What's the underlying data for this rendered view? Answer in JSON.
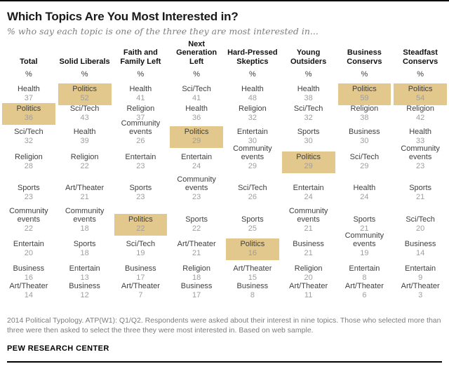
{
  "page": {
    "title": "Which Topics Are You Most Interested in?",
    "subtitle": "% who say each topic is one of the three they are most interested in...",
    "note": "2014 Political Typology. ATP(W1): Q1/Q2. Respondents were asked about their interest in nine topics. Those who selected more than three were then asked to select the three they were most interested in. Based on web sample.",
    "brand": "PEW RESEARCH CENTER"
  },
  "colors": {
    "highlight": "#E2C88D",
    "topic_text": "#3F3F3F",
    "value_text": "#9E9E9E",
    "rule": "#000000"
  },
  "unit_symbol": "%",
  "chart_data": {
    "type": "table",
    "title": "Which Topics Are You Most Interested in?",
    "unit": "% who say each topic is one of the three they are most interested in",
    "highlight_meaning": "Politics cell is highlighted (tan) in every column",
    "columns": [
      {
        "label": "Total",
        "rows": [
          {
            "topic": "Health",
            "value": 37
          },
          {
            "topic": "Politics",
            "value": 36,
            "highlight": true
          },
          {
            "topic": "Sci/Tech",
            "value": 32
          },
          {
            "topic": "Religion",
            "value": 28
          },
          {
            "topic": "Sports",
            "value": 23
          },
          {
            "topic": "Community events",
            "value": 22
          },
          {
            "topic": "Entertain",
            "value": 20
          },
          {
            "topic": "Business",
            "value": 16
          },
          {
            "topic": "Art/Theater",
            "value": 14
          }
        ]
      },
      {
        "label": "Solid Liberals",
        "rows": [
          {
            "topic": "Politics",
            "value": 52,
            "highlight": true
          },
          {
            "topic": "Sci/Tech",
            "value": 43
          },
          {
            "topic": "Health",
            "value": 39
          },
          {
            "topic": "Religion",
            "value": 22
          },
          {
            "topic": "Art/Theater",
            "value": 21
          },
          {
            "topic": "Community events",
            "value": 18
          },
          {
            "topic": "Sports",
            "value": 18
          },
          {
            "topic": "Entertain",
            "value": 13
          },
          {
            "topic": "Business",
            "value": 12
          }
        ]
      },
      {
        "label": "Faith and Family Left",
        "rows": [
          {
            "topic": "Health",
            "value": 41
          },
          {
            "topic": "Religion",
            "value": 37
          },
          {
            "topic": "Community events",
            "value": 26
          },
          {
            "topic": "Entertain",
            "value": 23
          },
          {
            "topic": "Sports",
            "value": 23
          },
          {
            "topic": "Politics",
            "value": 22,
            "highlight": true
          },
          {
            "topic": "Sci/Tech",
            "value": 19
          },
          {
            "topic": "Business",
            "value": 17
          },
          {
            "topic": "Art/Theater",
            "value": 7
          }
        ]
      },
      {
        "label": "Next Generation Left",
        "rows": [
          {
            "topic": "Sci/Tech",
            "value": 41
          },
          {
            "topic": "Health",
            "value": 36
          },
          {
            "topic": "Politics",
            "value": 29,
            "highlight": true
          },
          {
            "topic": "Entertain",
            "value": 24
          },
          {
            "topic": "Community events",
            "value": 23
          },
          {
            "topic": "Sports",
            "value": 22
          },
          {
            "topic": "Art/Theater",
            "value": 21
          },
          {
            "topic": "Religion",
            "value": 18
          },
          {
            "topic": "Business",
            "value": 17
          }
        ]
      },
      {
        "label": "Hard-Pressed Skeptics",
        "rows": [
          {
            "topic": "Health",
            "value": 48
          },
          {
            "topic": "Religion",
            "value": 32
          },
          {
            "topic": "Entertain",
            "value": 30
          },
          {
            "topic": "Community events",
            "value": 29
          },
          {
            "topic": "Sci/Tech",
            "value": 26
          },
          {
            "topic": "Sports",
            "value": 25
          },
          {
            "topic": "Politics",
            "value": 16,
            "highlight": true
          },
          {
            "topic": "Art/Theater",
            "value": 15
          },
          {
            "topic": "Business",
            "value": 8
          }
        ]
      },
      {
        "label": "Young Outsiders",
        "rows": [
          {
            "topic": "Health",
            "value": 38
          },
          {
            "topic": "Sci/Tech",
            "value": 32
          },
          {
            "topic": "Sports",
            "value": 30
          },
          {
            "topic": "Politics",
            "value": 29,
            "highlight": true
          },
          {
            "topic": "Entertain",
            "value": 24
          },
          {
            "topic": "Community events",
            "value": 21
          },
          {
            "topic": "Business",
            "value": 21
          },
          {
            "topic": "Religion",
            "value": 20
          },
          {
            "topic": "Art/Theater",
            "value": 11
          }
        ]
      },
      {
        "label": "Business Conservs",
        "rows": [
          {
            "topic": "Politics",
            "value": 59,
            "highlight": true
          },
          {
            "topic": "Religion",
            "value": 38
          },
          {
            "topic": "Business",
            "value": 30
          },
          {
            "topic": "Sci/Tech",
            "value": 29
          },
          {
            "topic": "Health",
            "value": 24
          },
          {
            "topic": "Sports",
            "value": 21
          },
          {
            "topic": "Community events",
            "value": 19
          },
          {
            "topic": "Entertain",
            "value": 8
          },
          {
            "topic": "Art/Theater",
            "value": 6
          }
        ]
      },
      {
        "label": "Steadfast Conservs",
        "rows": [
          {
            "topic": "Politics",
            "value": 54,
            "highlight": true
          },
          {
            "topic": "Religion",
            "value": 42
          },
          {
            "topic": "Health",
            "value": 33
          },
          {
            "topic": "Community events",
            "value": 23
          },
          {
            "topic": "Sports",
            "value": 21
          },
          {
            "topic": "Sci/Tech",
            "value": 20
          },
          {
            "topic": "Business",
            "value": 14
          },
          {
            "topic": "Entertain",
            "value": 9
          },
          {
            "topic": "Art/Theater",
            "value": 3
          }
        ]
      }
    ]
  }
}
